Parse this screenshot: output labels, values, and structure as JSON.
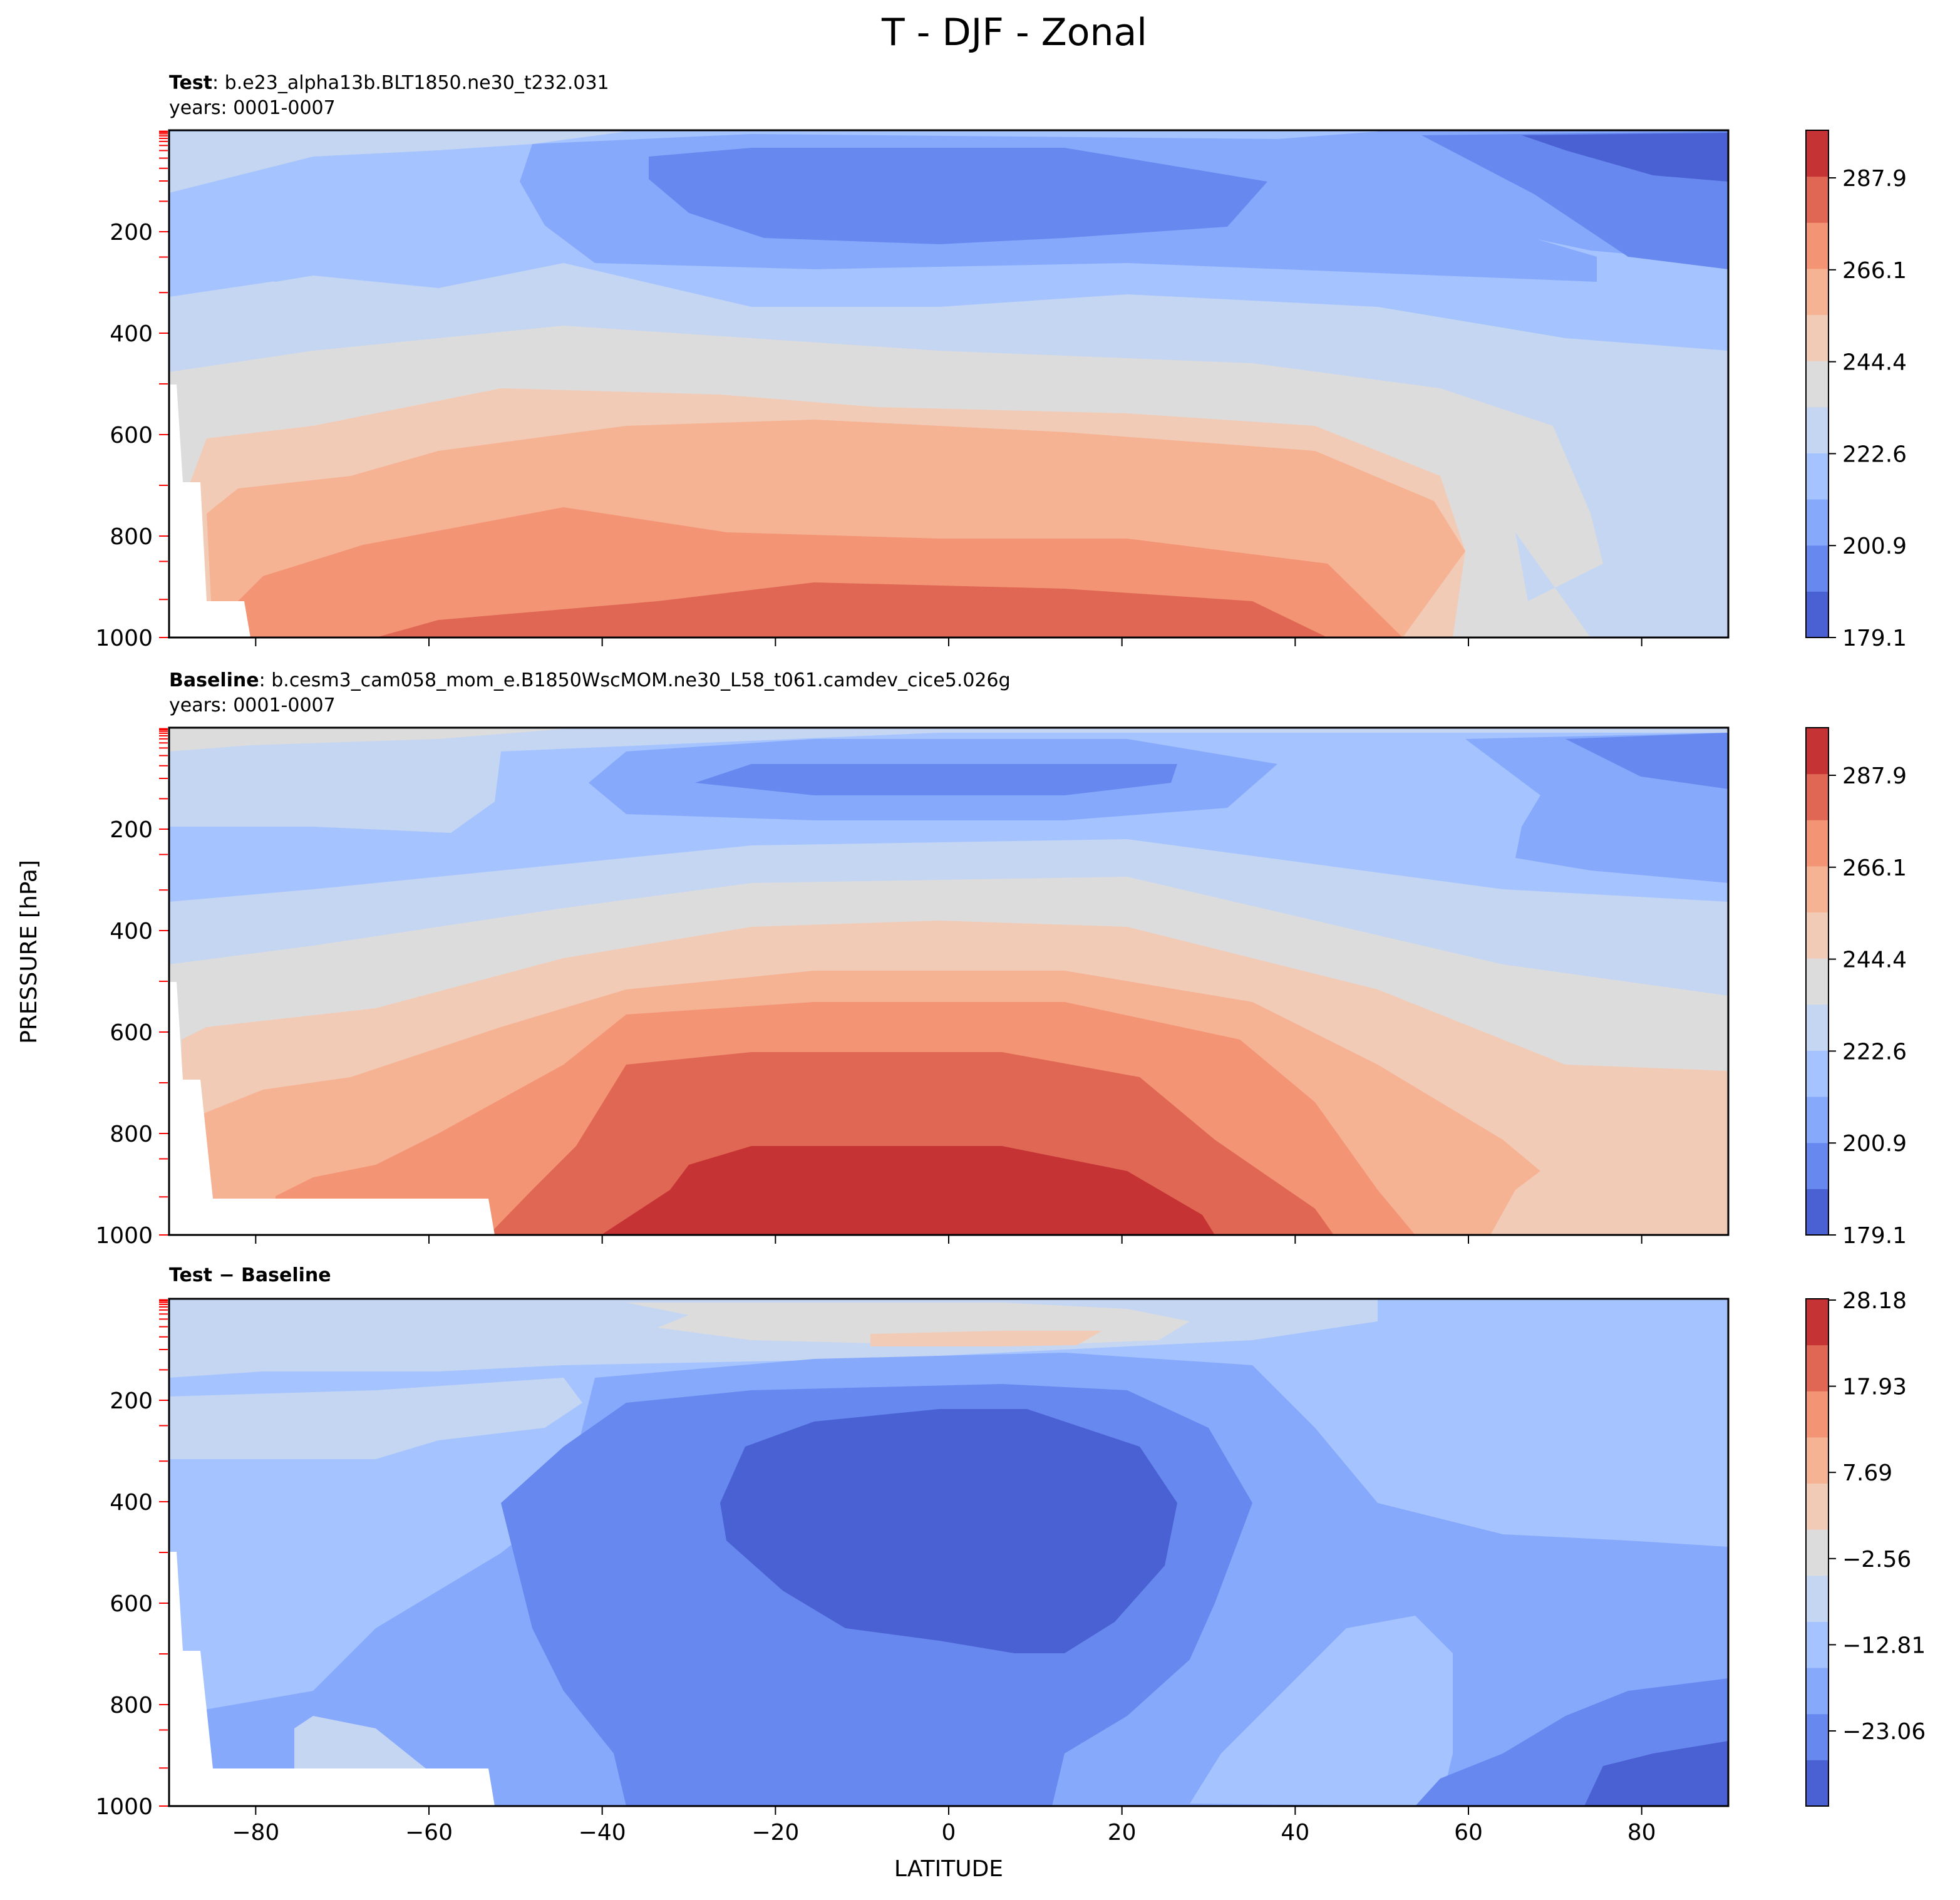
{
  "chart_data": {
    "title": "T - DJF - Zonal",
    "xlabel": "LATITUDE",
    "ylabel": "PRESSURE [hPa]",
    "x_ticks": [
      "−80",
      "−60",
      "−40",
      "−20",
      "0",
      "20",
      "40",
      "60",
      "80"
    ],
    "x_tick_values": [
      -80,
      -60,
      -40,
      -20,
      0,
      20,
      40,
      60,
      80
    ],
    "xlim": [
      -90,
      90
    ],
    "y_ticks": [
      "200",
      "400",
      "600",
      "800",
      "1000"
    ],
    "y_tick_values": [
      200,
      400,
      600,
      800,
      1000
    ],
    "ylim": [
      1000,
      0
    ],
    "panels": [
      {
        "type": "heatmap",
        "label_bold": "Test",
        "label_text": ": b.e23_alpha13b.BLT1850.ne30_t232.031",
        "years": "years: 0001-0007",
        "colorbar_ticks": [
          "287.9",
          "266.1",
          "244.4",
          "222.6",
          "200.9",
          "179.1"
        ],
        "colorbar_levels": 11,
        "colormap": "coolwarm"
      },
      {
        "type": "heatmap",
        "label_bold": "Baseline",
        "label_text": ": b.cesm3_cam058_mom_e.B1850WscMOM.ne30_L58_t061.camdev_cice5.026g",
        "years": "years: 0001-0007",
        "colorbar_ticks": [
          "287.9",
          "266.1",
          "244.4",
          "222.6",
          "200.9",
          "179.1"
        ],
        "colorbar_levels": 11,
        "colormap": "coolwarm"
      },
      {
        "type": "heatmap",
        "label_bold": "Test − Baseline",
        "label_text": "",
        "years": "",
        "colorbar_ticks": [
          "28.18",
          "17.93",
          "7.69",
          "−2.56",
          "−12.81",
          "−23.06"
        ],
        "colorbar_levels": 11,
        "colormap": "coolwarm"
      }
    ],
    "colors": {
      "levels": [
        "#4961d2",
        "#6788ee",
        "#86a9fc",
        "#a5c3fe",
        "#c5d6f2",
        "#dddcdc",
        "#f2cbb7",
        "#f5b394",
        "#f39475",
        "#e06753",
        "#c53334"
      ],
      "missing": "#ffffff",
      "level_tick_marks": "#ff0000"
    }
  }
}
